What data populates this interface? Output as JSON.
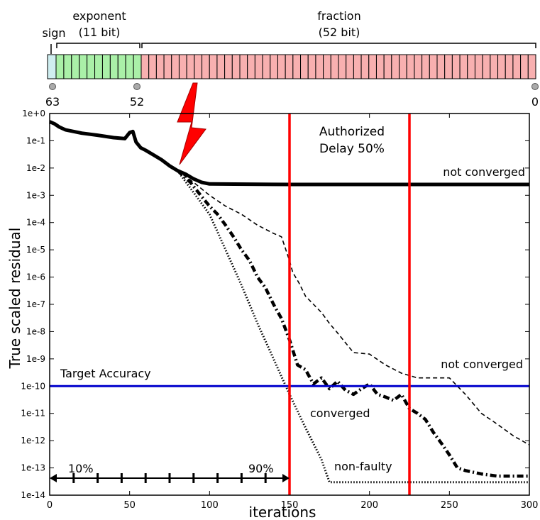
{
  "bit_diagram": {
    "sign_label": "sign",
    "exponent_label": "exponent",
    "exponent_bits_label": "(11 bit)",
    "fraction_label": "fraction",
    "fraction_bits_label": "(52 bit)",
    "markers": [
      "63",
      "52",
      "0"
    ],
    "sign_color": "#cfeef0",
    "exponent_color": "#aaf0a8",
    "fraction_color": "#f8b0b0"
  },
  "fault_icon": "lightning-bolt-icon",
  "chart_data": {
    "type": "line",
    "xlabel": "iterations",
    "ylabel": "True scaled residual",
    "xlim": [
      0,
      300
    ],
    "ylim": [
      1e-14,
      1
    ],
    "yscale": "log",
    "xticks": [
      "0",
      "50",
      "100",
      "150",
      "200",
      "250",
      "300"
    ],
    "yticks": [
      "1e-14",
      "1e-13",
      "1e-12",
      "1e-11",
      "1e-10",
      "1e-9",
      "1e-8",
      "1e-7",
      "1e-6",
      "1e-5",
      "1e-4",
      "1e-3",
      "1e-2",
      "1e-1",
      "1e+0"
    ],
    "target_accuracy": {
      "label": "Target Accuracy",
      "value": 1e-10,
      "color": "#0000cc"
    },
    "delay_lines": {
      "values": [
        150,
        225
      ],
      "label_line1": "Authorized",
      "label_line2": "Delay 50%",
      "color": "#ff0000"
    },
    "fault_interval": {
      "start_label": "10%",
      "end_label": "90%",
      "x_start": 0,
      "x_end": 150,
      "ticks": [
        15,
        30,
        45,
        60,
        75,
        90,
        105,
        120,
        135
      ]
    },
    "annotations": {
      "not_converged_top": "not converged",
      "not_converged_mid": "not converged",
      "converged": "converged",
      "non_faulty": "non-faulty"
    },
    "series": [
      {
        "style": "solid-thick",
        "points": [
          [
            0,
            0.5
          ],
          [
            3,
            0.42
          ],
          [
            6,
            0.32
          ],
          [
            10,
            0.25
          ],
          [
            20,
            0.19
          ],
          [
            30,
            0.16
          ],
          [
            40,
            0.13
          ],
          [
            47,
            0.12
          ],
          [
            50,
            0.2
          ],
          [
            52,
            0.22
          ],
          [
            54,
            0.09
          ],
          [
            57,
            0.055
          ],
          [
            60,
            0.045
          ],
          [
            65,
            0.03
          ],
          [
            70,
            0.02
          ],
          [
            75,
            0.012
          ],
          [
            80,
            0.008
          ],
          [
            85,
            0.006
          ],
          [
            90,
            0.004
          ],
          [
            95,
            0.003
          ],
          [
            100,
            0.0026
          ],
          [
            150,
            0.0025
          ],
          [
            200,
            0.0025
          ],
          [
            250,
            0.0025
          ],
          [
            300,
            0.0025
          ]
        ]
      },
      {
        "style": "dashed",
        "points": [
          [
            80,
            0.008
          ],
          [
            90,
            0.003
          ],
          [
            100,
            0.001
          ],
          [
            110,
            0.0004
          ],
          [
            120,
            0.0002
          ],
          [
            130,
            8e-05
          ],
          [
            140,
            4e-05
          ],
          [
            145,
            3e-05
          ],
          [
            150,
            4e-06
          ],
          [
            152,
            1.5e-06
          ],
          [
            156,
            6e-07
          ],
          [
            160,
            2e-07
          ],
          [
            165,
            1e-07
          ],
          [
            170,
            5e-08
          ],
          [
            175,
            2e-08
          ],
          [
            180,
            9e-09
          ],
          [
            190,
            1.7e-09
          ],
          [
            200,
            1.5e-09
          ],
          [
            210,
            6e-10
          ],
          [
            220,
            3e-10
          ],
          [
            230,
            2e-10
          ],
          [
            240,
            2e-10
          ],
          [
            250,
            2e-10
          ],
          [
            255,
            1e-10
          ],
          [
            260,
            5e-11
          ],
          [
            270,
            1e-11
          ],
          [
            280,
            4e-12
          ],
          [
            290,
            1.5e-12
          ],
          [
            300,
            7e-13
          ]
        ]
      },
      {
        "style": "dash-dot-thick",
        "points": [
          [
            80,
            0.008
          ],
          [
            88,
            0.003
          ],
          [
            95,
            0.0009
          ],
          [
            100,
            0.0004
          ],
          [
            105,
            0.0002
          ],
          [
            110,
            8e-05
          ],
          [
            115,
            3e-05
          ],
          [
            120,
            1e-05
          ],
          [
            125,
            4e-06
          ],
          [
            130,
            1e-06
          ],
          [
            135,
            4e-07
          ],
          [
            140,
            1e-07
          ],
          [
            145,
            3e-08
          ],
          [
            150,
            5e-09
          ],
          [
            155,
            6e-10
          ],
          [
            160,
            4e-10
          ],
          [
            165,
            1.2e-10
          ],
          [
            170,
            2e-10
          ],
          [
            175,
            8e-11
          ],
          [
            180,
            1.5e-10
          ],
          [
            185,
            7e-11
          ],
          [
            190,
            5e-11
          ],
          [
            195,
            8e-11
          ],
          [
            200,
            1.2e-10
          ],
          [
            205,
            5e-11
          ],
          [
            210,
            4e-11
          ],
          [
            215,
            3e-11
          ],
          [
            220,
            5e-11
          ],
          [
            225,
            1.5e-11
          ],
          [
            230,
            1e-11
          ],
          [
            235,
            6e-12
          ],
          [
            240,
            2e-12
          ],
          [
            245,
            8e-13
          ],
          [
            250,
            3e-13
          ],
          [
            255,
            1e-13
          ],
          [
            260,
            8e-14
          ],
          [
            270,
            6e-14
          ],
          [
            280,
            5e-14
          ],
          [
            290,
            5e-14
          ],
          [
            300,
            5e-14
          ]
        ]
      },
      {
        "style": "dotted",
        "points": [
          [
            80,
            0.008
          ],
          [
            100,
            0.0002
          ],
          [
            110,
            1e-05
          ],
          [
            120,
            5e-07
          ],
          [
            130,
            2e-08
          ],
          [
            140,
            1e-09
          ],
          [
            150,
            5e-11
          ],
          [
            160,
            3e-12
          ],
          [
            170,
            2e-13
          ],
          [
            175,
            3e-14
          ],
          [
            200,
            3e-14
          ],
          [
            250,
            3e-14
          ],
          [
            300,
            3e-14
          ]
        ]
      }
    ]
  }
}
